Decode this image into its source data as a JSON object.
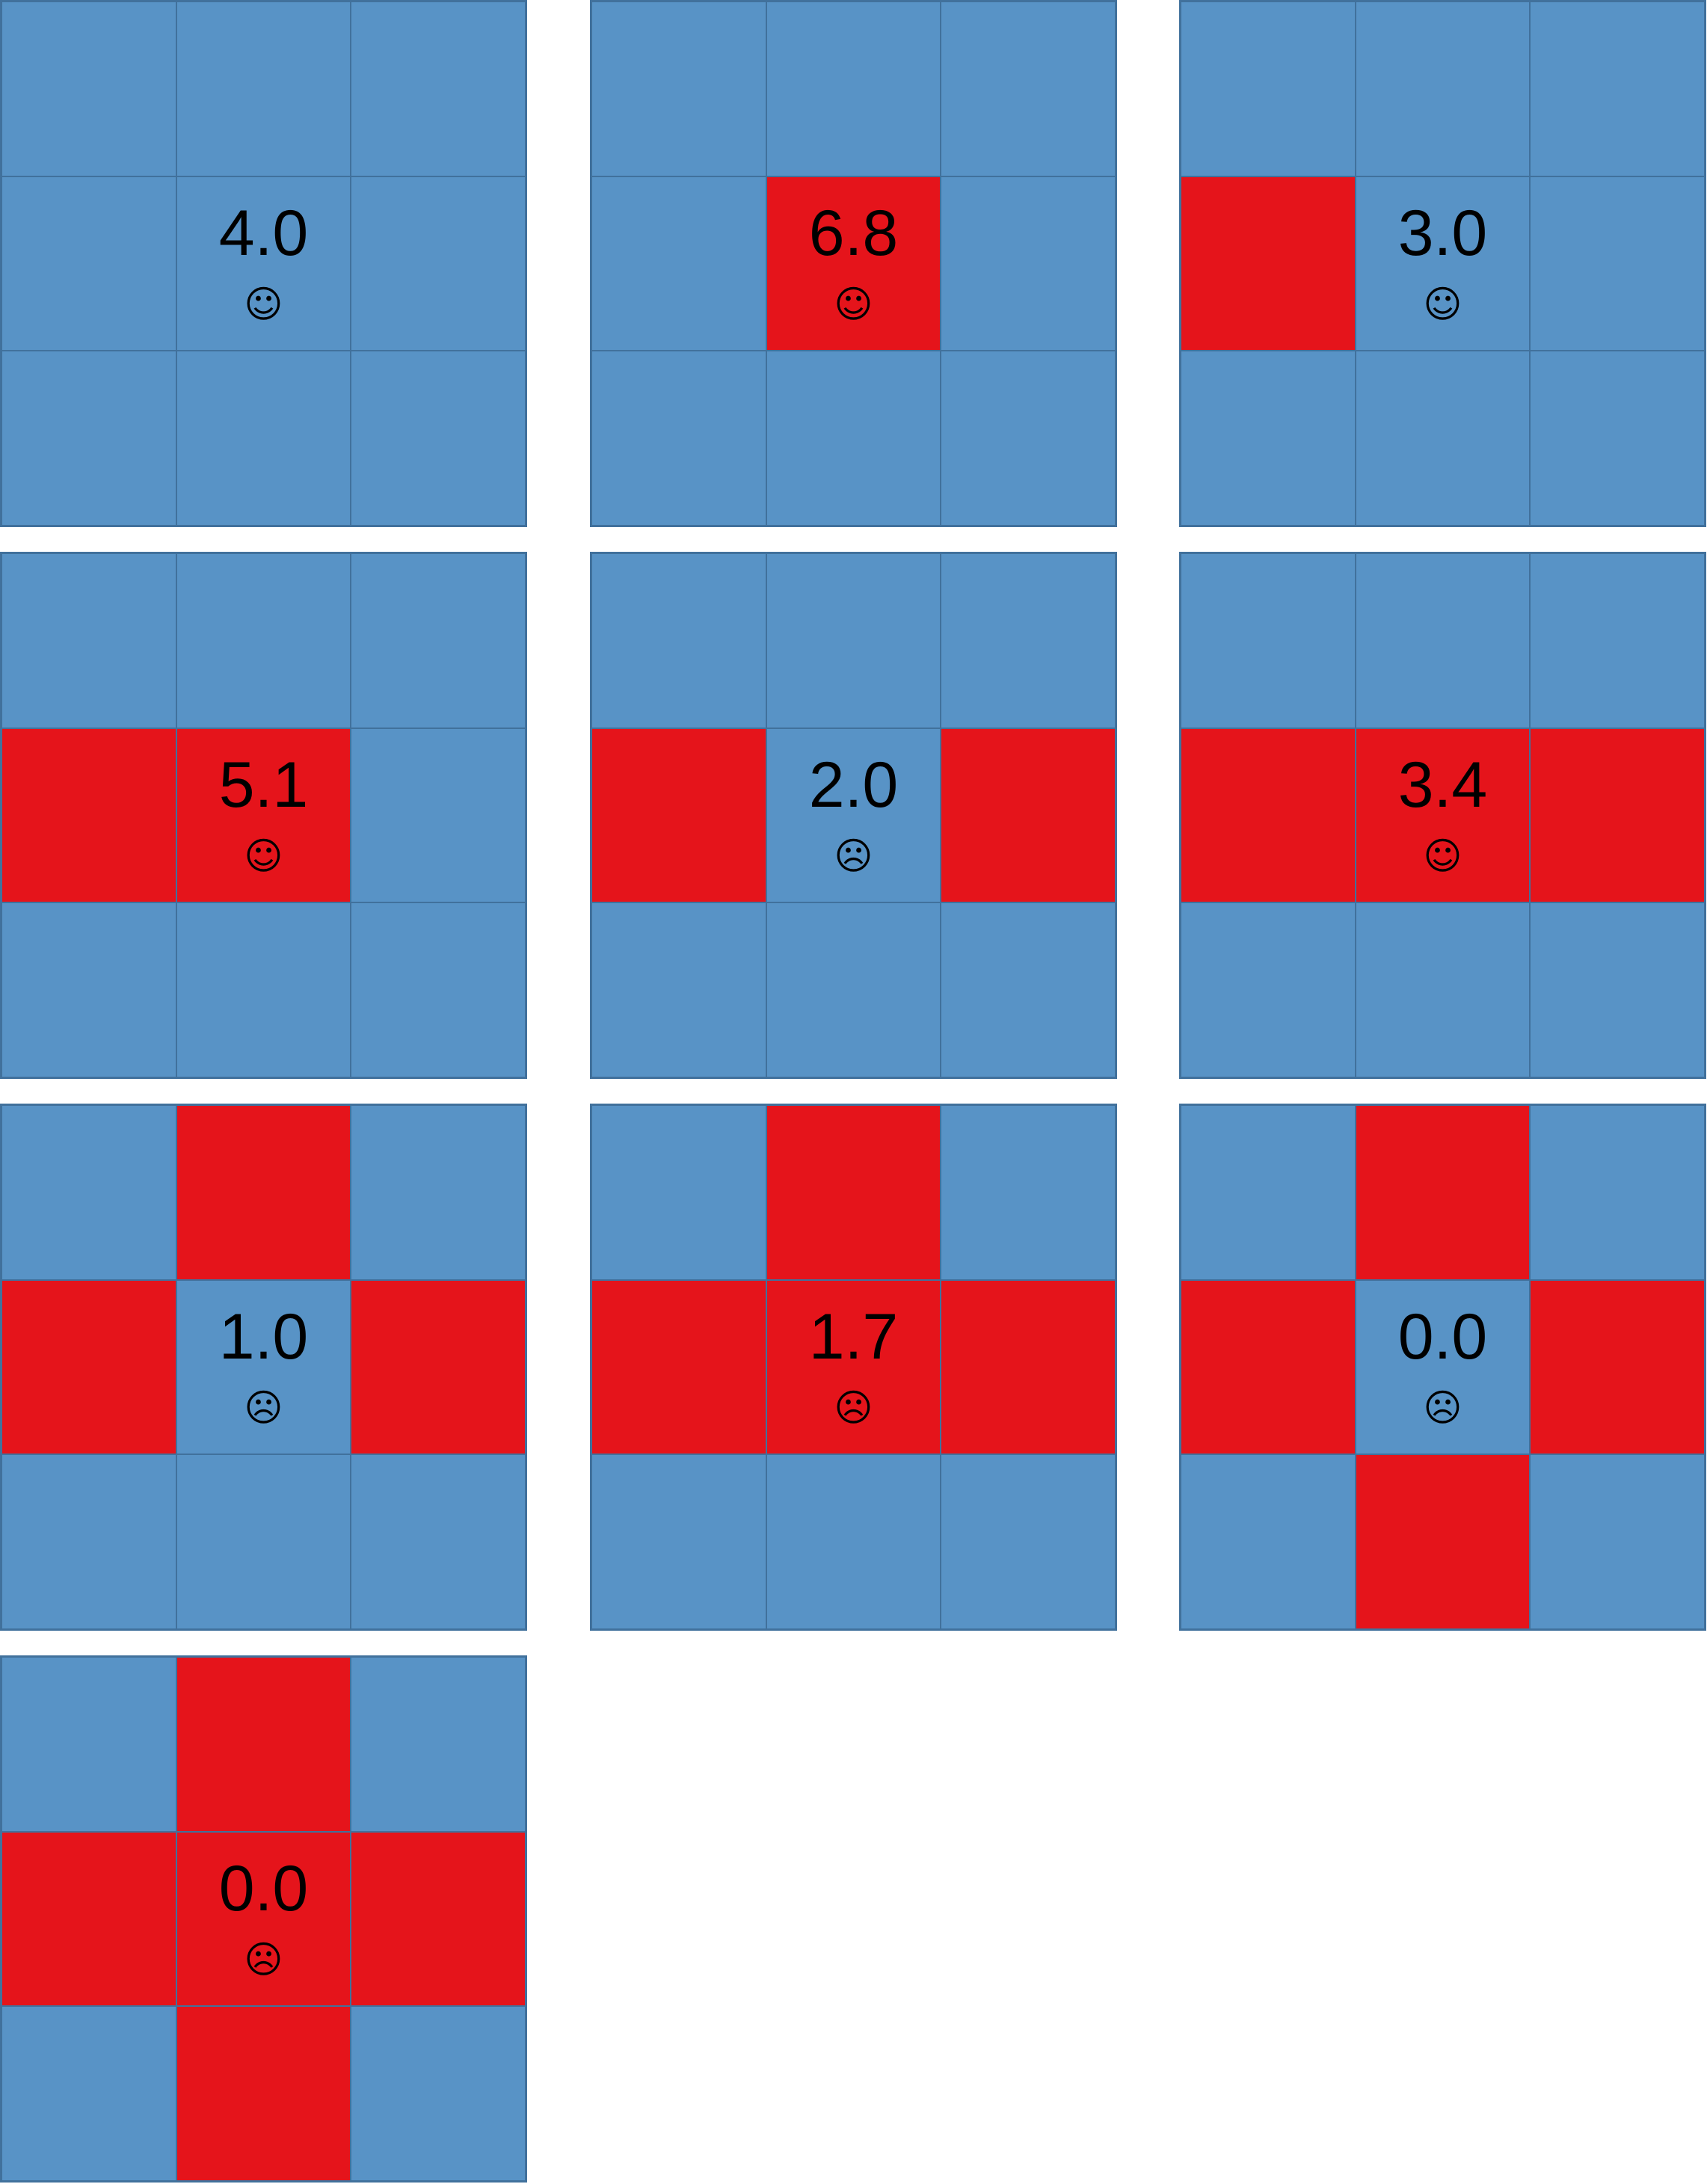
{
  "colors": {
    "blue": "#5893c6",
    "red": "#e5141b",
    "grid_line": "#41719c"
  },
  "panels": [
    {
      "value": "4.0",
      "mood": "happy",
      "face": "☺",
      "cells": [
        0,
        0,
        0,
        0,
        0,
        0,
        0,
        0,
        0
      ]
    },
    {
      "value": "6.8",
      "mood": "happy",
      "face": "☺",
      "cells": [
        0,
        0,
        0,
        0,
        1,
        0,
        0,
        0,
        0
      ]
    },
    {
      "value": "3.0",
      "mood": "happy",
      "face": "☺",
      "cells": [
        0,
        0,
        0,
        1,
        0,
        0,
        0,
        0,
        0
      ]
    },
    {
      "value": "5.1",
      "mood": "happy",
      "face": "☺",
      "cells": [
        0,
        0,
        0,
        1,
        1,
        0,
        0,
        0,
        0
      ]
    },
    {
      "value": "2.0",
      "mood": "sad",
      "face": "☹",
      "cells": [
        0,
        0,
        0,
        1,
        0,
        1,
        0,
        0,
        0
      ]
    },
    {
      "value": "3.4",
      "mood": "happy",
      "face": "☺",
      "cells": [
        0,
        0,
        0,
        1,
        1,
        1,
        0,
        0,
        0
      ]
    },
    {
      "value": "1.0",
      "mood": "sad",
      "face": "☹",
      "cells": [
        0,
        1,
        0,
        1,
        0,
        1,
        0,
        0,
        0
      ]
    },
    {
      "value": "1.7",
      "mood": "sad",
      "face": "☹",
      "cells": [
        0,
        1,
        0,
        1,
        1,
        1,
        0,
        0,
        0
      ]
    },
    {
      "value": "0.0",
      "mood": "sad",
      "face": "☹",
      "cells": [
        0,
        1,
        0,
        1,
        0,
        1,
        0,
        1,
        0
      ]
    },
    {
      "value": "0.0",
      "mood": "sad",
      "face": "☹",
      "cells": [
        0,
        1,
        0,
        1,
        1,
        1,
        0,
        1,
        0
      ]
    }
  ]
}
